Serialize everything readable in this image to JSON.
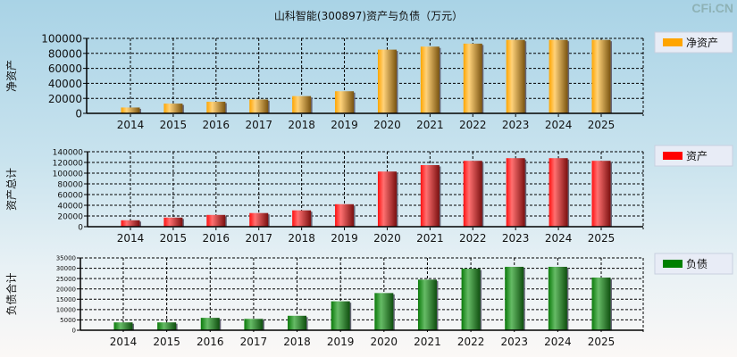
{
  "title": "山科智能(300897)资产与负债（万元）",
  "watermark": "CFi.CN",
  "chart_data": [
    {
      "type": "bar",
      "ylabel": "净资产",
      "legend": "净资产",
      "legend_placement": "right",
      "color": "#ffa500",
      "categories": [
        "2014",
        "2015",
        "2016",
        "2017",
        "2018",
        "2019",
        "2020",
        "2021",
        "2022",
        "2023",
        "2024",
        "2025"
      ],
      "values": [
        7800,
        13000,
        15500,
        18500,
        23000,
        29500,
        85000,
        89000,
        93000,
        98000,
        98000,
        98000
      ],
      "ylim": [
        0,
        100000
      ],
      "yticks": [
        0,
        20000,
        40000,
        60000,
        80000,
        100000
      ],
      "grid": true
    },
    {
      "type": "bar",
      "ylabel": "资产总计",
      "legend": "资产",
      "legend_placement": "right",
      "color": "#ff0000",
      "categories": [
        "2014",
        "2015",
        "2016",
        "2017",
        "2018",
        "2019",
        "2020",
        "2021",
        "2022",
        "2023",
        "2024",
        "2025"
      ],
      "values": [
        12000,
        17000,
        22000,
        25500,
        30500,
        42000,
        103000,
        115000,
        123000,
        128000,
        128000,
        123000
      ],
      "ylim": [
        0,
        140000
      ],
      "yticks": [
        0,
        20000,
        40000,
        60000,
        80000,
        100000,
        120000,
        140000
      ],
      "grid": true
    },
    {
      "type": "bar",
      "ylabel": "负债合计",
      "legend": "负债",
      "legend_placement": "right",
      "color": "#008000",
      "categories": [
        "2014",
        "2015",
        "2016",
        "2017",
        "2018",
        "2019",
        "2020",
        "2021",
        "2022",
        "2023",
        "2024",
        "2025"
      ],
      "values": [
        3800,
        3800,
        6000,
        5500,
        7000,
        14000,
        18000,
        24500,
        29800,
        30700,
        30700,
        25500
      ],
      "ylim": [
        0,
        35000
      ],
      "yticks": [
        0,
        5000,
        10000,
        15000,
        20000,
        25000,
        30000,
        35000
      ],
      "grid": true
    }
  ]
}
